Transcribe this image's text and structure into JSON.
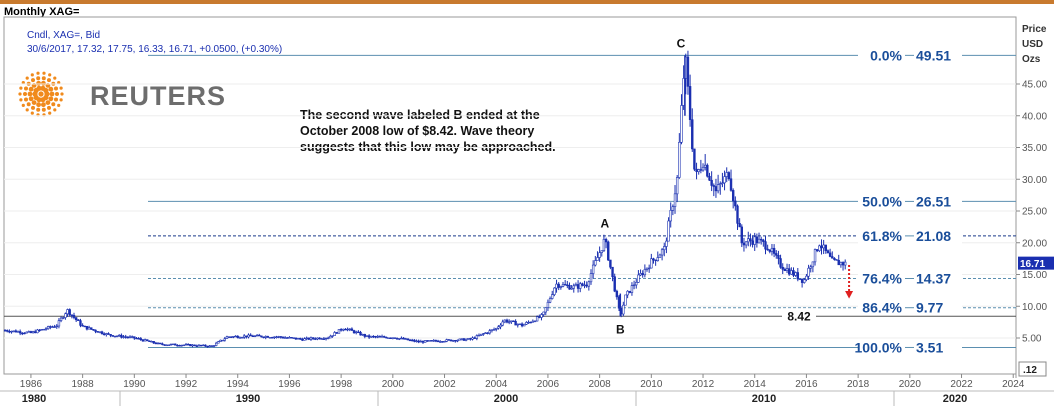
{
  "header": {
    "title": "Monthly XAG="
  },
  "legend": {
    "line1": "Cndl, XAG=, Bid",
    "line2": "30/6/2017, 17.32, 17.75, 16.33, 16.71, +0.0500, (+0.30%)"
  },
  "logo": {
    "text": "REUTERS"
  },
  "annotation": {
    "lines": [
      "The second wave labeled B ended at the",
      "October 2008 low of $8.42. Wave theory",
      "suggests that this low may be approached."
    ]
  },
  "axis": {
    "title_lines": [
      "Price",
      "USD",
      "Ozs"
    ],
    "scale_label": ".12",
    "current_price_label": "16.71"
  },
  "colors": {
    "topbar": "#c87a2e",
    "candle": "#1a2fb0",
    "fib_line": "#5b8fb0",
    "fib_text": "#1a4e9a",
    "arrow": "#e02020"
  },
  "chart_data": {
    "type": "candlestick",
    "title": "Monthly XAG=",
    "ylabel": "Price USD Ozs",
    "ylim": [
      0,
      55
    ],
    "y_ticks": [
      "5.00",
      "10.00",
      "15.00",
      "20.00",
      "25.00",
      "30.00",
      "35.00",
      "40.00",
      "45.00"
    ],
    "x_ticks": [
      "1986",
      "1988",
      "1990",
      "1992",
      "1994",
      "1996",
      "1998",
      "2000",
      "2002",
      "2004",
      "2006",
      "2008",
      "2010",
      "2012",
      "2014",
      "2016",
      "2018",
      "2020",
      "2022",
      "2024"
    ],
    "decades": [
      "1980",
      "1990",
      "2000",
      "2010",
      "2020"
    ],
    "last_close": 16.71,
    "series": [
      {
        "values": [
          {
            "x": 1985.0,
            "y": 6.2
          },
          {
            "x": 1986.0,
            "y": 5.8
          },
          {
            "x": 1987.0,
            "y": 7.0
          },
          {
            "x": 1987.4,
            "y": 9.4
          },
          {
            "x": 1988.0,
            "y": 6.8
          },
          {
            "x": 1989.0,
            "y": 5.5
          },
          {
            "x": 1990.0,
            "y": 5.0
          },
          {
            "x": 1991.0,
            "y": 4.0
          },
          {
            "x": 1992.0,
            "y": 3.9
          },
          {
            "x": 1993.0,
            "y": 3.7
          },
          {
            "x": 1993.6,
            "y": 5.2
          },
          {
            "x": 1994.5,
            "y": 5.3
          },
          {
            "x": 1995.5,
            "y": 5.2
          },
          {
            "x": 1996.5,
            "y": 4.8
          },
          {
            "x": 1997.5,
            "y": 5.1
          },
          {
            "x": 1998.1,
            "y": 6.6
          },
          {
            "x": 1999.0,
            "y": 5.2
          },
          {
            "x": 2000.0,
            "y": 5.1
          },
          {
            "x": 2001.0,
            "y": 4.4
          },
          {
            "x": 2002.0,
            "y": 4.6
          },
          {
            "x": 2003.0,
            "y": 4.8
          },
          {
            "x": 2004.0,
            "y": 6.5
          },
          {
            "x": 2004.3,
            "y": 7.8
          },
          {
            "x": 2005.0,
            "y": 7.0
          },
          {
            "x": 2005.8,
            "y": 8.5
          },
          {
            "x": 2006.3,
            "y": 13.5
          },
          {
            "x": 2007.0,
            "y": 13.0
          },
          {
            "x": 2007.5,
            "y": 13.5
          },
          {
            "x": 2008.2,
            "y": 20.5
          },
          {
            "x": 2008.8,
            "y": 8.42
          },
          {
            "x": 2009.0,
            "y": 11.5
          },
          {
            "x": 2009.5,
            "y": 14.5
          },
          {
            "x": 2010.0,
            "y": 17.0
          },
          {
            "x": 2010.5,
            "y": 19.0
          },
          {
            "x": 2011.0,
            "y": 30.0
          },
          {
            "x": 2011.3,
            "y": 49.51
          },
          {
            "x": 2011.7,
            "y": 30.0
          },
          {
            "x": 2012.0,
            "y": 33.0
          },
          {
            "x": 2012.5,
            "y": 28.0
          },
          {
            "x": 2013.0,
            "y": 31.0
          },
          {
            "x": 2013.5,
            "y": 20.0
          },
          {
            "x": 2014.0,
            "y": 20.5
          },
          {
            "x": 2014.5,
            "y": 19.5
          },
          {
            "x": 2015.0,
            "y": 16.5
          },
          {
            "x": 2015.9,
            "y": 14.0
          },
          {
            "x": 2016.5,
            "y": 20.0
          },
          {
            "x": 2017.0,
            "y": 17.0
          },
          {
            "x": 2017.5,
            "y": 16.71
          }
        ]
      }
    ],
    "fib_levels": [
      {
        "label": "0.0%",
        "value": 49.51,
        "value_label": "49.51"
      },
      {
        "label": "50.0%",
        "value": 26.51,
        "value_label": "26.51"
      },
      {
        "label": "61.8%",
        "value": 21.08,
        "value_label": "21.08"
      },
      {
        "label": "76.4%",
        "value": 14.37,
        "value_label": "14.37"
      },
      {
        "label": "86.4%",
        "value": 9.77,
        "value_label": "9.77"
      },
      {
        "label": "100.0%",
        "value": 3.51,
        "value_label": "3.51"
      }
    ],
    "support_label": "8.42",
    "wave_labels": [
      "A",
      "B",
      "C"
    ]
  }
}
